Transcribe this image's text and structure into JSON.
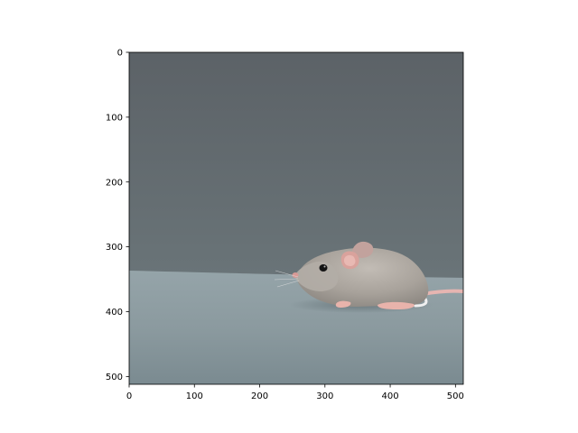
{
  "figure": {
    "x_ticks": [
      "0",
      "100",
      "200",
      "300",
      "400",
      "500"
    ],
    "y_ticks": [
      "0",
      "100",
      "200",
      "300",
      "400",
      "500"
    ],
    "x_tick_values": [
      0,
      100,
      200,
      300,
      400,
      500
    ],
    "y_tick_values": [
      0,
      100,
      200,
      300,
      400,
      500
    ],
    "xlim": [
      0,
      512
    ],
    "ylim": [
      512,
      0
    ],
    "colors": {
      "backdrop_top": "#5d6368",
      "backdrop_bottom": "#6e7a80",
      "table_far": "#8f9ea3",
      "table_near": "#7d8e94",
      "mouse_fur": "#aaa59f",
      "mouse_ear": "#d9a29c",
      "mouse_tail": "#e9b8b4",
      "axis": "#000000"
    }
  }
}
